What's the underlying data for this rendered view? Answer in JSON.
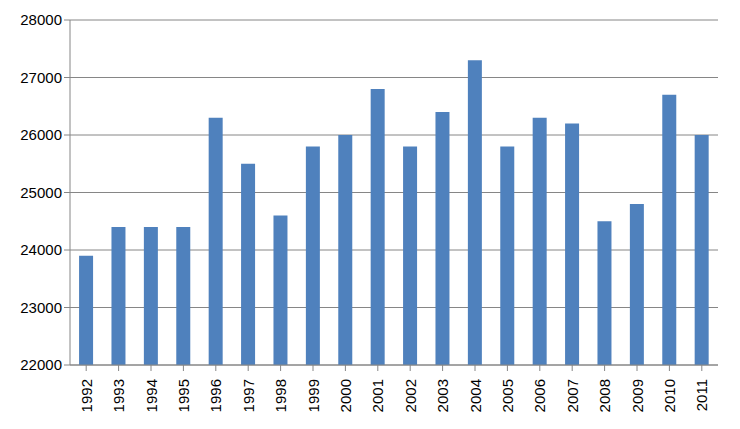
{
  "chart_data": {
    "type": "bar",
    "categories": [
      "1992",
      "1993",
      "1994",
      "1995",
      "1996",
      "1997",
      "1998",
      "1999",
      "2000",
      "2001",
      "2002",
      "2003",
      "2004",
      "2005",
      "2006",
      "2007",
      "2008",
      "2009",
      "2010",
      "2011"
    ],
    "values": [
      23900,
      24400,
      24400,
      24400,
      26300,
      25500,
      24600,
      25800,
      26000,
      26800,
      25800,
      26400,
      27300,
      25800,
      26300,
      26200,
      24500,
      24800,
      26700,
      26000
    ],
    "color": "#4f81bd",
    "ylim": [
      22000,
      28000
    ],
    "yticks": [
      22000,
      23000,
      24000,
      25000,
      26000,
      27000,
      28000
    ],
    "grid": true
  }
}
